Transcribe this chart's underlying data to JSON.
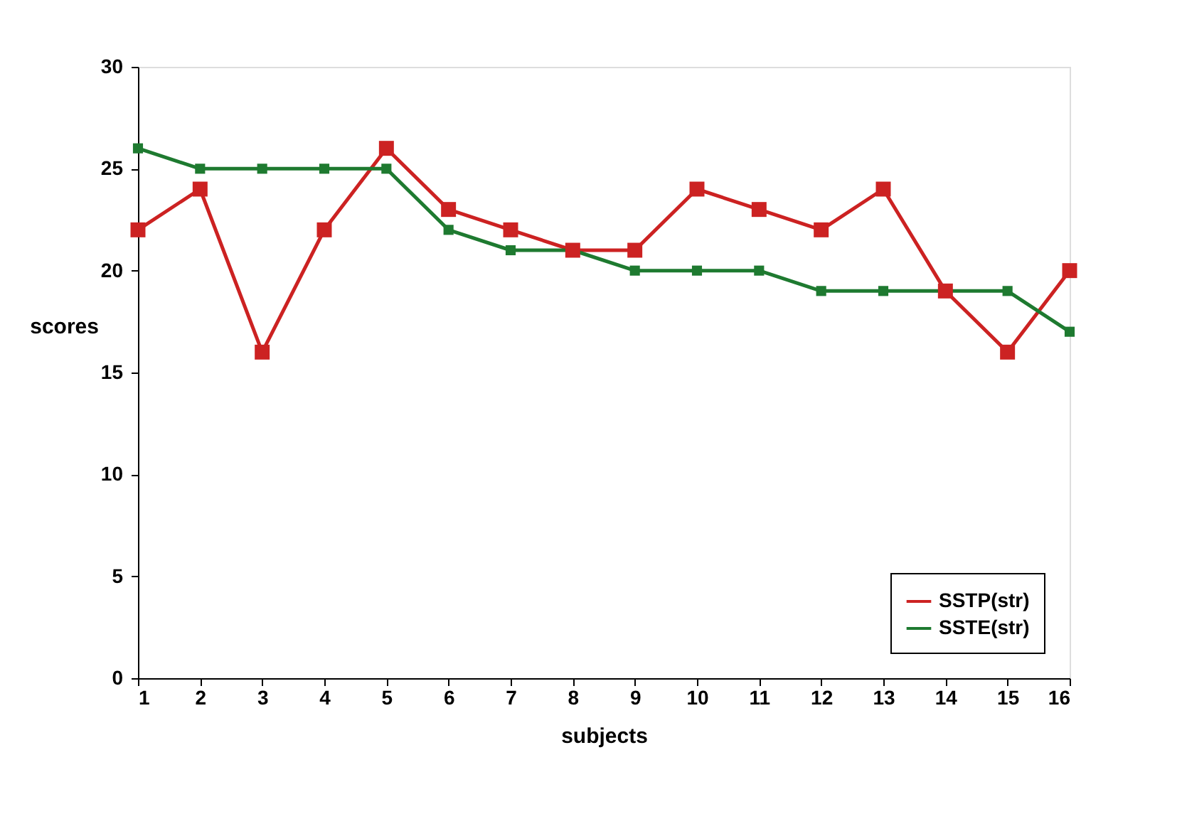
{
  "chart_data": {
    "type": "line",
    "xlabel": "subjects",
    "ylabel": "scores",
    "x": [
      1,
      2,
      3,
      4,
      5,
      6,
      7,
      8,
      9,
      10,
      11,
      12,
      13,
      14,
      15,
      16
    ],
    "xlim": [
      1,
      16
    ],
    "xticks": [
      1,
      2,
      3,
      4,
      5,
      6,
      7,
      8,
      9,
      10,
      11,
      12,
      13,
      14,
      15,
      16
    ],
    "ylim": [
      0,
      30
    ],
    "yticks": [
      0,
      5,
      10,
      15,
      20,
      25,
      30
    ],
    "grid": false,
    "legend": "bottom right",
    "marker": "square",
    "line_style": "solid",
    "series": [
      {
        "name": "SSTP(str)",
        "color": "#cc2222",
        "values": [
          22,
          24,
          16,
          22,
          26,
          23,
          22,
          21,
          21,
          24,
          23,
          22,
          24,
          19,
          16,
          20
        ]
      },
      {
        "name": "SSTE(str)",
        "color": "#1e7a30",
        "values": [
          26,
          25,
          25,
          25,
          25,
          22,
          21,
          21,
          20,
          20,
          20,
          19,
          19,
          19,
          19,
          17
        ]
      }
    ]
  }
}
